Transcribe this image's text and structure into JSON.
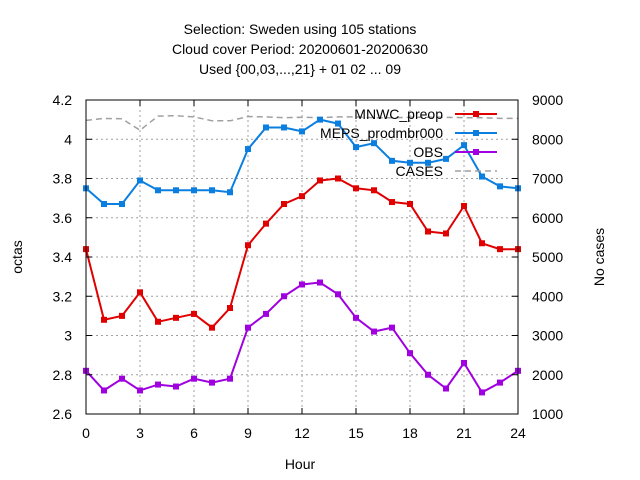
{
  "chart_data": {
    "type": "line",
    "title": [
      "Selection: Sweden using   105 stations",
      "Cloud cover   Period: 20200601-20200630",
      "Used {00,03,...,21} + 01 02 ... 09"
    ],
    "xlabel": "Hour",
    "ylabel": "octas",
    "y2label": "No cases",
    "xlim": [
      0,
      24
    ],
    "ylim": [
      2.6,
      4.2
    ],
    "y2lim": [
      1000,
      9000
    ],
    "xticks": [
      0,
      3,
      6,
      9,
      12,
      15,
      18,
      21,
      24
    ],
    "xtick_labels": [
      "0",
      "3",
      "6",
      "9",
      "12",
      "15",
      "18",
      "21",
      "24"
    ],
    "yticks": [
      2.6,
      2.8,
      3.0,
      3.2,
      3.4,
      3.6,
      3.8,
      4.0,
      4.2
    ],
    "ytick_labels": [
      "2.6",
      "2.8",
      "3",
      "3.2",
      "3.4",
      "3.6",
      "3.8",
      "4",
      "4.2"
    ],
    "y2ticks": [
      1000,
      2000,
      3000,
      4000,
      5000,
      6000,
      7000,
      8000,
      9000
    ],
    "y2tick_labels": [
      "1000",
      "2000",
      "3000",
      "4000",
      "5000",
      "6000",
      "7000",
      "8000",
      "9000"
    ],
    "grid": true,
    "legend_position": "top-right",
    "x": [
      0,
      1,
      2,
      3,
      4,
      5,
      6,
      7,
      8,
      9,
      10,
      11,
      12,
      13,
      14,
      15,
      16,
      17,
      18,
      19,
      20,
      21,
      22,
      23,
      24
    ],
    "series": [
      {
        "name": "MNWC_preop",
        "color": "#e00000",
        "axis": "y",
        "values": [
          3.44,
          3.08,
          3.1,
          3.22,
          3.07,
          3.09,
          3.11,
          3.04,
          3.14,
          3.46,
          3.57,
          3.67,
          3.71,
          3.79,
          3.8,
          3.75,
          3.74,
          3.68,
          3.67,
          3.53,
          3.52,
          3.66,
          3.47,
          3.44,
          3.44
        ]
      },
      {
        "name": "MEPS_prodmbr000",
        "color": "#0b7fe0",
        "axis": "y",
        "values": [
          3.75,
          3.67,
          3.67,
          3.79,
          3.74,
          3.74,
          3.74,
          3.74,
          3.73,
          3.95,
          4.06,
          4.06,
          4.04,
          4.1,
          4.08,
          3.96,
          3.98,
          3.89,
          3.88,
          3.88,
          3.9,
          3.97,
          3.81,
          3.76,
          3.75
        ]
      },
      {
        "name": "OBS",
        "color": "#a000e0",
        "axis": "y",
        "values": [
          2.82,
          2.72,
          2.78,
          2.72,
          2.75,
          2.74,
          2.78,
          2.76,
          2.78,
          3.04,
          3.11,
          3.2,
          3.26,
          3.27,
          3.21,
          3.09,
          3.02,
          3.04,
          2.91,
          2.8,
          2.73,
          2.86,
          2.71,
          2.76,
          2.82
        ]
      },
      {
        "name": "CASES",
        "color": "#a0a0a0",
        "axis": "y2",
        "dashed": true,
        "values": [
          8480,
          8530,
          8520,
          8230,
          8590,
          8600,
          8570,
          8470,
          8470,
          8580,
          8570,
          8550,
          8560,
          8550,
          8570,
          8570,
          8550,
          8550,
          8560,
          8560,
          8560,
          8550,
          8550,
          8530,
          8530
        ]
      }
    ]
  }
}
